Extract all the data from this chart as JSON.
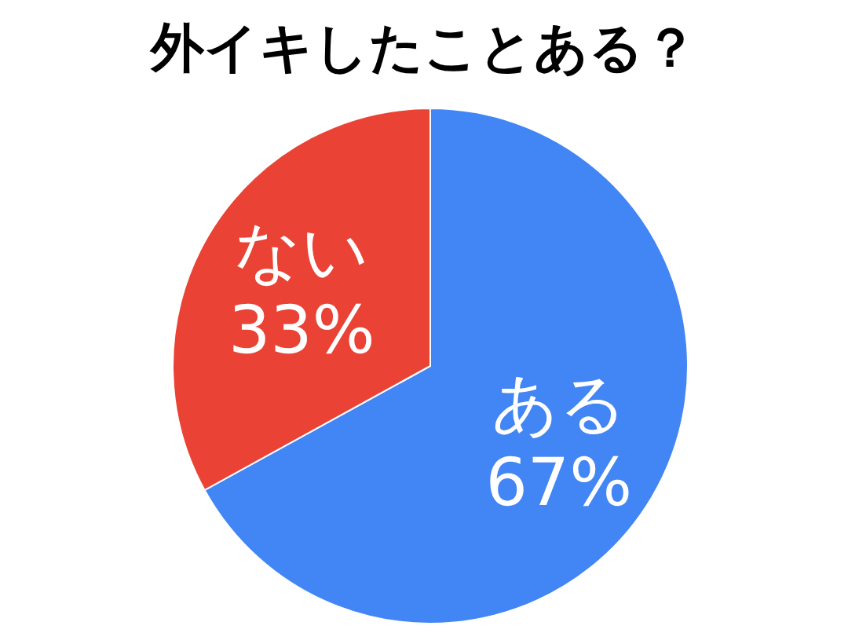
{
  "chart_data": {
    "type": "pie",
    "title": "外イキしたことある？",
    "categories": [
      "ある",
      "ない"
    ],
    "values": [
      67,
      33
    ],
    "value_labels": [
      "67%",
      "33%"
    ],
    "colors": [
      "#4285f4",
      "#ea4335"
    ],
    "legend": false
  }
}
